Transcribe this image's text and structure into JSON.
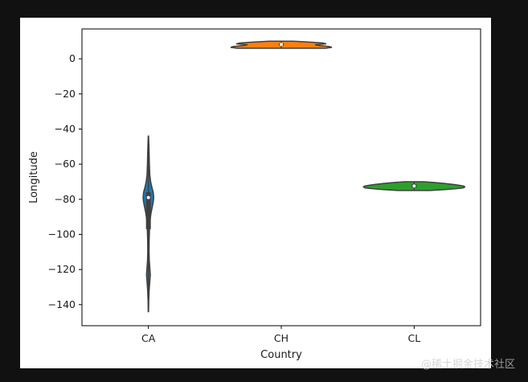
{
  "chart_data": {
    "type": "violin",
    "xlabel": "Country",
    "ylabel": "Longitude",
    "categories": [
      "CA",
      "CH",
      "CL"
    ],
    "ylim": [
      -152,
      17
    ],
    "yticks": [
      0,
      -20,
      -40,
      -60,
      -80,
      -100,
      -120,
      -140
    ],
    "ytick_labels": [
      "0",
      "−20",
      "−40",
      "−60",
      "−80",
      "−100",
      "−120",
      "−140"
    ],
    "grid": false,
    "violins": [
      {
        "category": "CA",
        "color": "#1f77b4",
        "min": -144,
        "max": -44,
        "q1": -97,
        "median": -79,
        "q3": -76,
        "profile": [
          [
            -144,
            0.2
          ],
          [
            -138,
            0.4
          ],
          [
            -132,
            0.9
          ],
          [
            -127,
            1.7
          ],
          [
            -123,
            2.4
          ],
          [
            -120,
            1.9
          ],
          [
            -115,
            1.1
          ],
          [
            -110,
            0.8
          ],
          [
            -104,
            0.9
          ],
          [
            -98,
            1.3
          ],
          [
            -92,
            2.0
          ],
          [
            -88,
            3.2
          ],
          [
            -84,
            5.0
          ],
          [
            -81,
            6.2
          ],
          [
            -79,
            6.6
          ],
          [
            -76,
            6.0
          ],
          [
            -73,
            4.2
          ],
          [
            -70,
            2.8
          ],
          [
            -66,
            1.7
          ],
          [
            -60,
            1.2
          ],
          [
            -54,
            0.9
          ],
          [
            -49,
            0.6
          ],
          [
            -44,
            0.2
          ]
        ]
      },
      {
        "category": "CH",
        "color": "#ff7f0e",
        "min": 6,
        "max": 10,
        "q1": 7.5,
        "median": 8.2,
        "q3": 8.8,
        "profile": [
          [
            6.0,
            55
          ],
          [
            6.5,
            63
          ],
          [
            7.0,
            60
          ],
          [
            7.5,
            48
          ],
          [
            8.0,
            42
          ],
          [
            8.5,
            56
          ],
          [
            9.0,
            52
          ],
          [
            9.5,
            36
          ],
          [
            10.0,
            15
          ]
        ]
      },
      {
        "category": "CL",
        "color": "#2ca02c",
        "min": -75,
        "max": -70,
        "q1": -73.5,
        "median": -72.5,
        "q3": -71.5,
        "profile": [
          [
            -75.0,
            20
          ],
          [
            -74.5,
            38
          ],
          [
            -74.0,
            52
          ],
          [
            -73.5,
            61
          ],
          [
            -73.0,
            63
          ],
          [
            -72.5,
            62
          ],
          [
            -72.0,
            56
          ],
          [
            -71.5,
            48
          ],
          [
            -71.0,
            38
          ],
          [
            -70.5,
            26
          ],
          [
            -70.0,
            12
          ]
        ]
      }
    ]
  },
  "watermark": "@稀土掘金技术社区"
}
